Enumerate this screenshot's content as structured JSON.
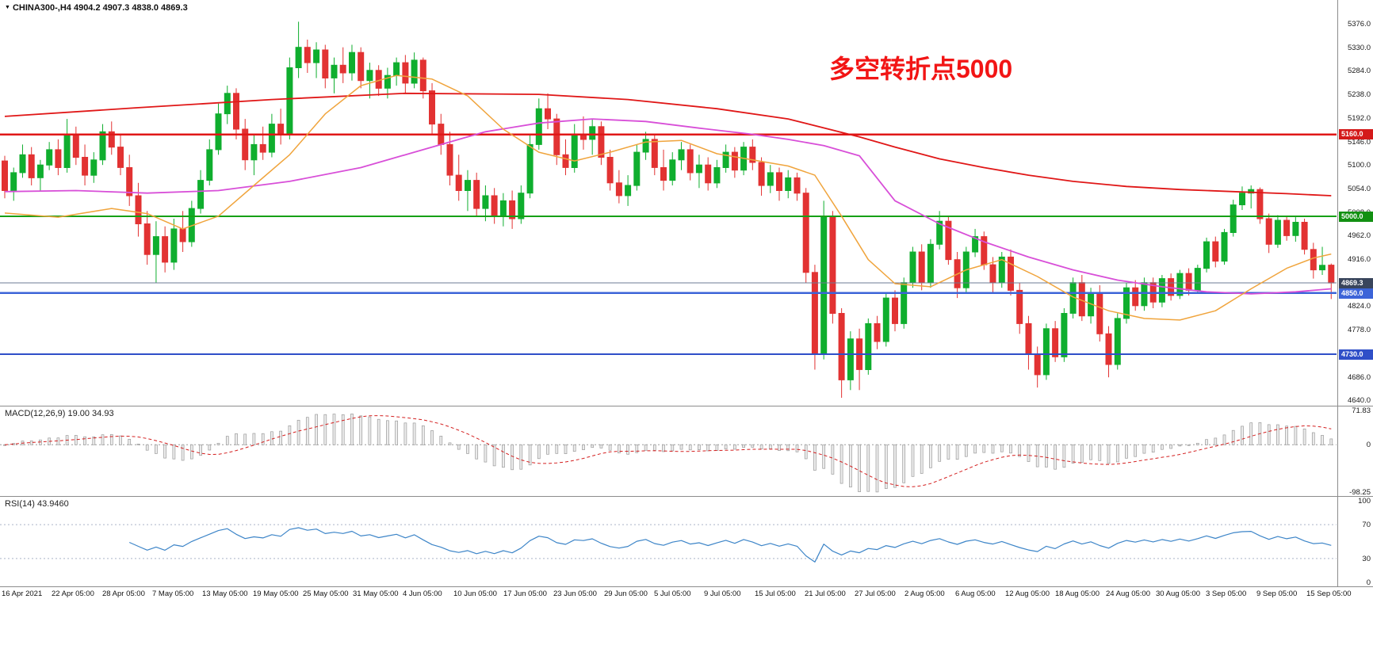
{
  "header": {
    "collapse_icon": "▼",
    "symbol_info": "CHINA300-,H4  4904.2 4907.3 4838.0 4869.3"
  },
  "colors": {
    "candle_up": "#0fae2e",
    "candle_down": "#e23232",
    "macd_signal": "#d42020",
    "macd_histogram_fill": "#ececec",
    "macd_histogram_stroke": "#9a9a9a",
    "rsi_line": "#3d85c8",
    "background": "#ffffff"
  },
  "chart_data": {
    "type": "candlestick",
    "symbol": "CHINA300-",
    "timeframe": "H4",
    "ohlc_display": {
      "open": 4904.2,
      "high": 4907.3,
      "low": 4838.0,
      "close": 4869.3
    },
    "ylim": [
      4629.5,
      5422.5
    ],
    "y_ticks": [
      5376.0,
      5330.0,
      5284.0,
      5238.0,
      5192.0,
      5146.0,
      5100.0,
      5054.0,
      5008.0,
      4962.0,
      4916.0,
      4870.0,
      4824.0,
      4778.0,
      4732.0,
      4686.0,
      4640.0
    ],
    "x_ticks": [
      "16 Apr 2021",
      "22 Apr 05:00",
      "28 Apr 05:00",
      "7 May 05:00",
      "13 May 05:00",
      "19 May 05:00",
      "25 May 05:00",
      "31 May 05:00",
      "4 Jun 05:00",
      "10 Jun 05:00",
      "17 Jun 05:00",
      "23 Jun 05:00",
      "29 Jun 05:00",
      "5 Jul 05:00",
      "9 Jul 05:00",
      "15 Jul 05:00",
      "21 Jul 05:00",
      "27 Jul 05:00",
      "2 Aug 05:00",
      "6 Aug 05:00",
      "12 Aug 05:00",
      "18 Aug 05:00",
      "24 Aug 05:00",
      "30 Aug 05:00",
      "3 Sep 05:00",
      "9 Sep 05:00",
      "15 Sep 05:00"
    ],
    "ohlc": [
      [
        5108,
        5118,
        5035,
        5050
      ],
      [
        5050,
        5095,
        5030,
        5085
      ],
      [
        5085,
        5140,
        5075,
        5120
      ],
      [
        5120,
        5135,
        5060,
        5075
      ],
      [
        5075,
        5110,
        5050,
        5100
      ],
      [
        5100,
        5145,
        5090,
        5130
      ],
      [
        5130,
        5150,
        5080,
        5095
      ],
      [
        5095,
        5190,
        5085,
        5160
      ],
      [
        5160,
        5175,
        5100,
        5115
      ],
      [
        5115,
        5140,
        5060,
        5080
      ],
      [
        5080,
        5125,
        5065,
        5110
      ],
      [
        5110,
        5180,
        5100,
        5165
      ],
      [
        5165,
        5185,
        5120,
        5135
      ],
      [
        5135,
        5160,
        5080,
        5095
      ],
      [
        5095,
        5120,
        5020,
        5040
      ],
      [
        5040,
        5065,
        4960,
        4985
      ],
      [
        4985,
        5010,
        4905,
        4925
      ],
      [
        4925,
        4990,
        4870,
        4960
      ],
      [
        4960,
        4980,
        4890,
        4910
      ],
      [
        4910,
        4995,
        4895,
        4975
      ],
      [
        4975,
        5010,
        4930,
        4950
      ],
      [
        4950,
        5030,
        4940,
        5015
      ],
      [
        5015,
        5090,
        5005,
        5070
      ],
      [
        5070,
        5150,
        5060,
        5130
      ],
      [
        5130,
        5220,
        5120,
        5200
      ],
      [
        5200,
        5255,
        5180,
        5240
      ],
      [
        5240,
        5250,
        5150,
        5170
      ],
      [
        5170,
        5190,
        5090,
        5110
      ],
      [
        5110,
        5160,
        5080,
        5140
      ],
      [
        5140,
        5175,
        5110,
        5125
      ],
      [
        5125,
        5200,
        5115,
        5180
      ],
      [
        5180,
        5210,
        5140,
        5160
      ],
      [
        5160,
        5310,
        5150,
        5290
      ],
      [
        5290,
        5380,
        5270,
        5330
      ],
      [
        5330,
        5345,
        5280,
        5300
      ],
      [
        5300,
        5340,
        5270,
        5325
      ],
      [
        5325,
        5335,
        5250,
        5270
      ],
      [
        5270,
        5310,
        5240,
        5295
      ],
      [
        5295,
        5330,
        5260,
        5280
      ],
      [
        5280,
        5335,
        5265,
        5320
      ],
      [
        5320,
        5330,
        5250,
        5265
      ],
      [
        5265,
        5300,
        5230,
        5285
      ],
      [
        5285,
        5295,
        5235,
        5250
      ],
      [
        5250,
        5290,
        5230,
        5275
      ],
      [
        5275,
        5310,
        5255,
        5300
      ],
      [
        5300,
        5315,
        5240,
        5260
      ],
      [
        5260,
        5320,
        5250,
        5305
      ],
      [
        5305,
        5310,
        5230,
        5245
      ],
      [
        5245,
        5260,
        5160,
        5180
      ],
      [
        5180,
        5200,
        5120,
        5140
      ],
      [
        5140,
        5165,
        5060,
        5080
      ],
      [
        5080,
        5120,
        5030,
        5050
      ],
      [
        5050,
        5090,
        5010,
        5070
      ],
      [
        5070,
        5085,
        5000,
        5015
      ],
      [
        5015,
        5060,
        4990,
        5040
      ],
      [
        5040,
        5055,
        4985,
        5000
      ],
      [
        5000,
        5045,
        4980,
        5030
      ],
      [
        5030,
        5050,
        4975,
        4995
      ],
      [
        4995,
        5060,
        4985,
        5045
      ],
      [
        5045,
        5160,
        5035,
        5140
      ],
      [
        5140,
        5230,
        5130,
        5210
      ],
      [
        5210,
        5240,
        5170,
        5190
      ],
      [
        5190,
        5200,
        5100,
        5120
      ],
      [
        5120,
        5150,
        5080,
        5095
      ],
      [
        5095,
        5180,
        5085,
        5160
      ],
      [
        5160,
        5195,
        5130,
        5150
      ],
      [
        5150,
        5190,
        5120,
        5175
      ],
      [
        5175,
        5185,
        5100,
        5115
      ],
      [
        5115,
        5130,
        5050,
        5065
      ],
      [
        5065,
        5090,
        5025,
        5040
      ],
      [
        5040,
        5080,
        5020,
        5060
      ],
      [
        5060,
        5140,
        5050,
        5125
      ],
      [
        5125,
        5165,
        5110,
        5150
      ],
      [
        5150,
        5160,
        5080,
        5095
      ],
      [
        5095,
        5130,
        5050,
        5070
      ],
      [
        5070,
        5125,
        5060,
        5110
      ],
      [
        5110,
        5145,
        5090,
        5130
      ],
      [
        5130,
        5140,
        5070,
        5085
      ],
      [
        5085,
        5120,
        5055,
        5100
      ],
      [
        5100,
        5115,
        5050,
        5065
      ],
      [
        5065,
        5110,
        5055,
        5095
      ],
      [
        5095,
        5140,
        5085,
        5125
      ],
      [
        5125,
        5135,
        5075,
        5090
      ],
      [
        5090,
        5145,
        5080,
        5135
      ],
      [
        5135,
        5150,
        5090,
        5105
      ],
      [
        5105,
        5115,
        5040,
        5060
      ],
      [
        5060,
        5100,
        5045,
        5085
      ],
      [
        5085,
        5095,
        5030,
        5050
      ],
      [
        5050,
        5090,
        5035,
        5075
      ],
      [
        5075,
        5085,
        5030,
        5045
      ],
      [
        5045,
        5055,
        4870,
        4890
      ],
      [
        4890,
        4905,
        4700,
        4730
      ],
      [
        4730,
        5030,
        4720,
        5000
      ],
      [
        5000,
        5010,
        4790,
        4810
      ],
      [
        4810,
        4820,
        4645,
        4680
      ],
      [
        4680,
        4775,
        4660,
        4760
      ],
      [
        4760,
        4780,
        4660,
        4700
      ],
      [
        4700,
        4800,
        4690,
        4790
      ],
      [
        4790,
        4805,
        4740,
        4755
      ],
      [
        4755,
        4850,
        4745,
        4840
      ],
      [
        4840,
        4855,
        4775,
        4790
      ],
      [
        4790,
        4880,
        4780,
        4870
      ],
      [
        4870,
        4940,
        4860,
        4930
      ],
      [
        4930,
        4945,
        4855,
        4870
      ],
      [
        4870,
        4955,
        4860,
        4945
      ],
      [
        4945,
        5010,
        4935,
        4990
      ],
      [
        4990,
        5000,
        4905,
        4915
      ],
      [
        4915,
        4930,
        4840,
        4860
      ],
      [
        4860,
        4940,
        4850,
        4930
      ],
      [
        4930,
        4975,
        4920,
        4960
      ],
      [
        4960,
        4970,
        4895,
        4905
      ],
      [
        4905,
        4920,
        4850,
        4870
      ],
      [
        4870,
        4930,
        4860,
        4920
      ],
      [
        4920,
        4935,
        4845,
        4855
      ],
      [
        4855,
        4870,
        4770,
        4790
      ],
      [
        4790,
        4805,
        4700,
        4730
      ],
      [
        4730,
        4745,
        4665,
        4690
      ],
      [
        4690,
        4790,
        4680,
        4780
      ],
      [
        4780,
        4795,
        4715,
        4725
      ],
      [
        4725,
        4820,
        4715,
        4810
      ],
      [
        4810,
        4880,
        4800,
        4870
      ],
      [
        4870,
        4885,
        4795,
        4805
      ],
      [
        4805,
        4860,
        4790,
        4850
      ],
      [
        4850,
        4865,
        4755,
        4770
      ],
      [
        4770,
        4785,
        4685,
        4710
      ],
      [
        4710,
        4810,
        4700,
        4800
      ],
      [
        4800,
        4870,
        4790,
        4860
      ],
      [
        4860,
        4875,
        4815,
        4825
      ],
      [
        4825,
        4880,
        4815,
        4870
      ],
      [
        4870,
        4880,
        4820,
        4832
      ],
      [
        4832,
        4885,
        4822,
        4878
      ],
      [
        4878,
        4888,
        4835,
        4845
      ],
      [
        4845,
        4895,
        4838,
        4888
      ],
      [
        4888,
        4898,
        4845,
        4855
      ],
      [
        4855,
        4905,
        4848,
        4898
      ],
      [
        4898,
        4958,
        4890,
        4950
      ],
      [
        4950,
        4960,
        4900,
        4912
      ],
      [
        4912,
        4975,
        4905,
        4968
      ],
      [
        4968,
        5032,
        4960,
        5022
      ],
      [
        5022,
        5058,
        5012,
        5045
      ],
      [
        5045,
        5060,
        5015,
        5052
      ],
      [
        5052,
        5056,
        4985,
        4995
      ],
      [
        4995,
        5005,
        4928,
        4945
      ],
      [
        4945,
        5002,
        4938,
        4992
      ],
      [
        4992,
        5000,
        4952,
        4962
      ],
      [
        4962,
        4998,
        4950,
        4988
      ],
      [
        4988,
        4995,
        4925,
        4935
      ],
      [
        4935,
        4948,
        4878,
        4895
      ],
      [
        4895,
        4940,
        4885,
        4904
      ],
      [
        4904.2,
        4907.3,
        4838.0,
        4869.3
      ]
    ],
    "hlines": [
      {
        "price": 5160.0,
        "label": "5160.0",
        "color": "#e01717",
        "width": 2.5,
        "label_bg": "#d41a1a"
      },
      {
        "price": 5000.0,
        "label": "5000.0",
        "color": "#16a016",
        "width": 2,
        "label_bg": "#129012"
      },
      {
        "price": 4850.0,
        "label": "4850.0",
        "color": "#3c64d8",
        "width": 2.5,
        "label_bg": "#3c64d8"
      },
      {
        "price": 4730.0,
        "label": "4730.0",
        "color": "#2f4fc8",
        "width": 2,
        "label_bg": "#2f4fc8"
      }
    ],
    "bid_line": {
      "price": 4869.3,
      "label": "4869.3",
      "color": "#6d7b94",
      "width": 1,
      "label_bg": "#39455c"
    },
    "moving_averages": [
      {
        "name": "slow-red",
        "color": "#e01717",
        "width": 1.8,
        "points": [
          [
            0,
            5195
          ],
          [
            15,
            5212
          ],
          [
            30,
            5228
          ],
          [
            45,
            5240
          ],
          [
            60,
            5238
          ],
          [
            70,
            5228
          ],
          [
            80,
            5210
          ],
          [
            88,
            5190
          ],
          [
            96,
            5155
          ],
          [
            100,
            5135
          ],
          [
            105,
            5112
          ],
          [
            110,
            5095
          ],
          [
            115,
            5080
          ],
          [
            120,
            5068
          ],
          [
            126,
            5058
          ],
          [
            132,
            5052
          ],
          [
            138,
            5048
          ],
          [
            144,
            5044
          ],
          [
            149,
            5040
          ]
        ]
      },
      {
        "name": "mid-magenta",
        "color": "#d84fd8",
        "width": 1.8,
        "points": [
          [
            0,
            5048
          ],
          [
            8,
            5050
          ],
          [
            16,
            5045
          ],
          [
            24,
            5050
          ],
          [
            32,
            5068
          ],
          [
            40,
            5095
          ],
          [
            48,
            5135
          ],
          [
            54,
            5165
          ],
          [
            60,
            5182
          ],
          [
            66,
            5190
          ],
          [
            72,
            5185
          ],
          [
            78,
            5172
          ],
          [
            84,
            5160
          ],
          [
            88,
            5150
          ],
          [
            92,
            5138
          ],
          [
            96,
            5118
          ],
          [
            100,
            5030
          ],
          [
            105,
            4985
          ],
          [
            110,
            4950
          ],
          [
            115,
            4920
          ],
          [
            120,
            4895
          ],
          [
            125,
            4875
          ],
          [
            130,
            4862
          ],
          [
            135,
            4852
          ],
          [
            140,
            4848
          ],
          [
            145,
            4852
          ],
          [
            149,
            4858
          ]
        ]
      },
      {
        "name": "fast-orange",
        "color": "#f0a43c",
        "width": 1.5,
        "points": [
          [
            0,
            5006
          ],
          [
            6,
            4998
          ],
          [
            12,
            5015
          ],
          [
            16,
            5005
          ],
          [
            20,
            4975
          ],
          [
            24,
            5000
          ],
          [
            28,
            5060
          ],
          [
            32,
            5120
          ],
          [
            36,
            5200
          ],
          [
            40,
            5255
          ],
          [
            44,
            5275
          ],
          [
            48,
            5268
          ],
          [
            52,
            5235
          ],
          [
            56,
            5170
          ],
          [
            60,
            5125
          ],
          [
            64,
            5108
          ],
          [
            68,
            5125
          ],
          [
            72,
            5145
          ],
          [
            76,
            5148
          ],
          [
            80,
            5122
          ],
          [
            84,
            5110
          ],
          [
            88,
            5098
          ],
          [
            91,
            5080
          ],
          [
            94,
            5000
          ],
          [
            97,
            4915
          ],
          [
            100,
            4868
          ],
          [
            104,
            4862
          ],
          [
            108,
            4895
          ],
          [
            112,
            4915
          ],
          [
            116,
            4882
          ],
          [
            120,
            4842
          ],
          [
            124,
            4815
          ],
          [
            128,
            4800
          ],
          [
            132,
            4797
          ],
          [
            136,
            4815
          ],
          [
            140,
            4858
          ],
          [
            144,
            4898
          ],
          [
            147,
            4918
          ],
          [
            149,
            4926
          ]
        ]
      }
    ],
    "indicators": {
      "macd": {
        "label": "MACD(12,26,9) 19.00 34.93",
        "params": [
          12,
          26,
          9
        ],
        "value": 19.0,
        "signal_value": 34.93,
        "scale_max": 71.83,
        "scale_min": -98.25,
        "scale_labels": [
          "71.83",
          "0",
          "-98.25"
        ]
      },
      "rsi": {
        "label": "RSI(14) 43.9460",
        "period": 14,
        "value": 43.946,
        "levels": [
          70,
          30
        ],
        "scale_labels": [
          "100",
          "70",
          "30",
          "0"
        ]
      }
    },
    "annotation": {
      "text": "多空转折点5000",
      "color": "#f21515"
    }
  }
}
